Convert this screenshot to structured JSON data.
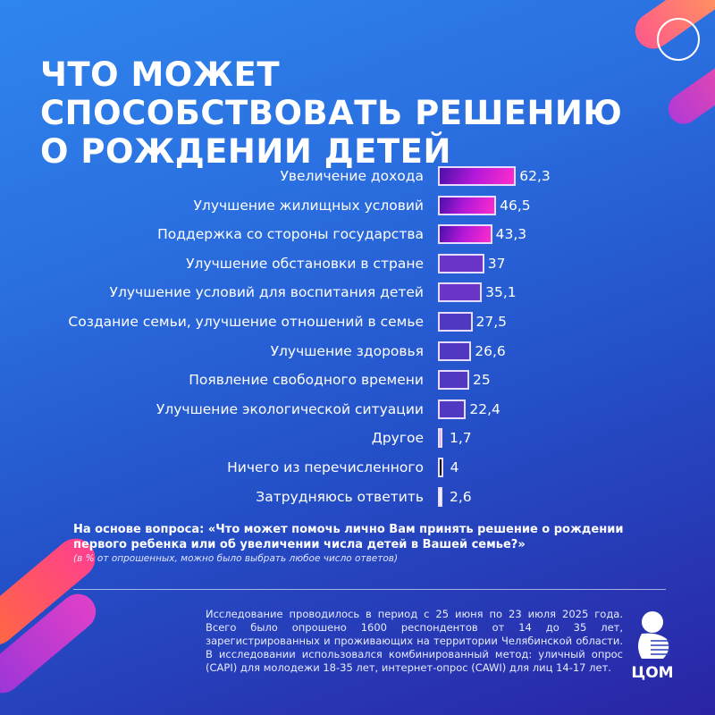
{
  "title": "ЧТО МОЖЕТ СПОСОБСТВОВАТЬ РЕШЕНИЮ О РОЖДЕНИИ ДЕТЕЙ",
  "chart_data": {
    "type": "bar",
    "orientation": "horizontal",
    "title": "ЧТО МОЖЕТ СПОСОБСТВОВАТЬ РЕШЕНИЮ О РОЖДЕНИИ ДЕТЕЙ",
    "categories": [
      "Увеличение дохода",
      "Улучшение жилищных условий",
      "Поддержка со стороны государства",
      "Улучшение обстановки в стране",
      "Улучшение условий для воспитания детей",
      "Создание семьи, улучшение отношений в семье",
      "Улучшение здоровья",
      "Появление свободного времени",
      "Улучшение экологической ситуации",
      "Другое",
      "Ничего из перечисленного",
      "Затрудняюсь ответить"
    ],
    "values": [
      62.3,
      46.5,
      43.3,
      37,
      35.1,
      27.5,
      26.6,
      25,
      22.4,
      1.7,
      4,
      2.6
    ],
    "value_labels": [
      "62,3",
      "46,5",
      "43,3",
      "37",
      "35,1",
      "27,5",
      "26,6",
      "25",
      "22,4",
      "1,7",
      "4",
      "2,6"
    ],
    "bar_colors": [
      "gradient-pink",
      "gradient-pink",
      "gradient-pink",
      "#6a35c8",
      "#6a35c8",
      "#5238c0",
      "#5238c0",
      "#5238c0",
      "#5238c0",
      "#e0a0e8",
      "#000000",
      "#ffffff"
    ],
    "unit": "%",
    "grid": false
  },
  "question": "На основе вопроса: «Что может помочь лично Вам принять решение о рождении первого ребенка или об увеличении числа детей в Вашей семье?»",
  "note": "(в % от опрошенных, можно было выбрать любое число ответов)",
  "method": "Исследование проводилось в период с 25 июня по 23 июля 2025 года. Всего было опрошено 1600 респондентов от 14 до 35 лет, зарегистрированных и проживающих на территории Челябинской области. В исследовании использовался комбинированный метод: уличный опрос (CAPI) для молодежи 18-35 лет, интернет-опрос (CAWI) для лиц 14-17 лет.",
  "logo_text": "ЦОМ"
}
